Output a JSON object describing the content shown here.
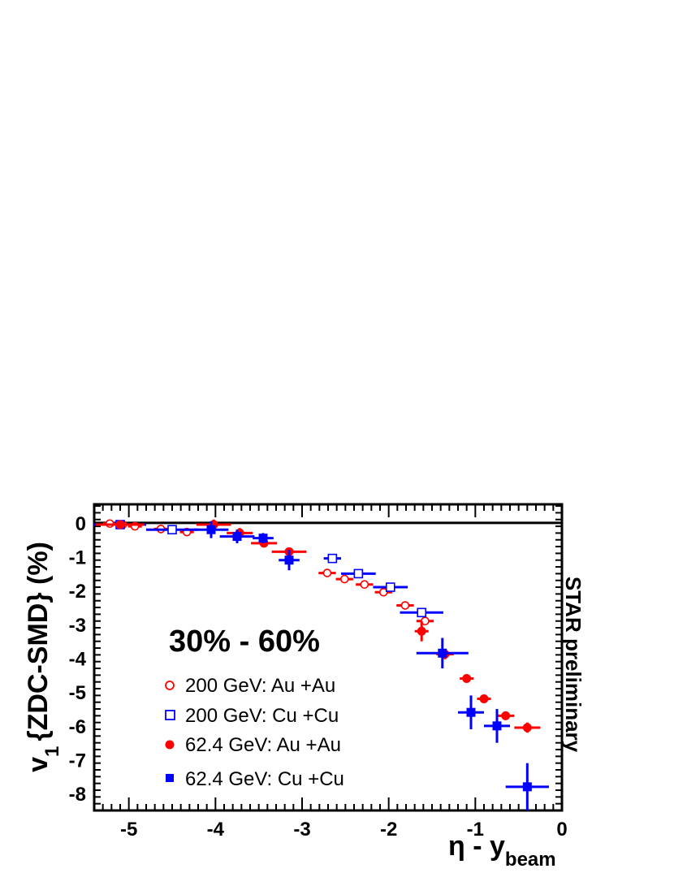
{
  "chart_data": {
    "type": "scatter",
    "title": "",
    "xlabel": "η - y_beam",
    "ylabel": "v1 {ZDC-SMD} (%)",
    "xlim": [
      -5.4,
      0
    ],
    "ylim": [
      -8.5,
      0.55
    ],
    "x_ticks": [
      "-5",
      "-4",
      "-3",
      "-2",
      "-1",
      "0"
    ],
    "y_ticks": [
      "0",
      "-1",
      "-2",
      "-3",
      "-4",
      "-5",
      "-6",
      "-7",
      "-8"
    ],
    "reference_line_y": 0,
    "annotation_centrality": "30% - 60%",
    "annotation_preliminary": "STAR preliminary",
    "series": [
      {
        "name": "200 GeV: Au +Au",
        "marker": "open-circle",
        "color": "#ff0000",
        "points": [
          {
            "x": -5.22,
            "y": -0.02,
            "xerr": 0.08,
            "yerr": 0.03
          },
          {
            "x": -5.07,
            "y": -0.05,
            "xerr": 0.08,
            "yerr": 0.03
          },
          {
            "x": -4.93,
            "y": -0.1,
            "xerr": 0.08,
            "yerr": 0.03
          },
          {
            "x": -4.63,
            "y": -0.18,
            "xerr": 0.08,
            "yerr": 0.03
          },
          {
            "x": -4.33,
            "y": -0.27,
            "xerr": 0.08,
            "yerr": 0.03
          },
          {
            "x": -2.71,
            "y": -1.48,
            "xerr": 0.1,
            "yerr": 0.04
          },
          {
            "x": -2.51,
            "y": -1.66,
            "xerr": 0.1,
            "yerr": 0.04
          },
          {
            "x": -2.28,
            "y": -1.82,
            "xerr": 0.1,
            "yerr": 0.04
          },
          {
            "x": -2.06,
            "y": -2.05,
            "xerr": 0.1,
            "yerr": 0.04
          },
          {
            "x": -1.81,
            "y": -2.44,
            "xerr": 0.1,
            "yerr": 0.04
          },
          {
            "x": -1.58,
            "y": -2.9,
            "xerr": 0.1,
            "yerr": 0.04
          }
        ]
      },
      {
        "name": "200 GeV: Cu +Cu",
        "marker": "open-square",
        "color": "#0000ff",
        "points": [
          {
            "x": -5.1,
            "y": -0.05,
            "xerr": 0.3,
            "yerr": 0.05
          },
          {
            "x": -4.5,
            "y": -0.2,
            "xerr": 0.3,
            "yerr": 0.05
          },
          {
            "x": -2.65,
            "y": -1.05,
            "xerr": 0.1,
            "yerr": 0.05
          },
          {
            "x": -2.35,
            "y": -1.5,
            "xerr": 0.2,
            "yerr": 0.05
          },
          {
            "x": -1.98,
            "y": -1.9,
            "xerr": 0.2,
            "yerr": 0.05
          },
          {
            "x": -1.62,
            "y": -2.65,
            "xerr": 0.25,
            "yerr": 0.05
          }
        ]
      },
      {
        "name": "62.4 GeV: Au +Au",
        "marker": "filled-circle",
        "color": "#ff0000",
        "points": [
          {
            "x": -5.1,
            "y": -0.05,
            "xerr": 0.28,
            "yerr": 0.05
          },
          {
            "x": -4.02,
            "y": -0.05,
            "xerr": 0.2,
            "yerr": 0.15
          },
          {
            "x": -3.72,
            "y": -0.3,
            "xerr": 0.15,
            "yerr": 0.15
          },
          {
            "x": -3.44,
            "y": -0.6,
            "xerr": 0.15,
            "yerr": 0.1
          },
          {
            "x": -3.15,
            "y": -0.85,
            "xerr": 0.2,
            "yerr": 0.08
          },
          {
            "x": -1.62,
            "y": -3.2,
            "xerr": 0.08,
            "yerr": 0.3
          },
          {
            "x": -1.35,
            "y": -3.88,
            "xerr": 0.1,
            "yerr": 0.15
          },
          {
            "x": -1.1,
            "y": -4.6,
            "xerr": 0.08,
            "yerr": 0.08
          },
          {
            "x": -0.9,
            "y": -5.2,
            "xerr": 0.08,
            "yerr": 0.1
          },
          {
            "x": -0.65,
            "y": -5.7,
            "xerr": 0.1,
            "yerr": 0.1
          },
          {
            "x": -0.4,
            "y": -6.05,
            "xerr": 0.15,
            "yerr": 0.15
          }
        ]
      },
      {
        "name": "62.4 GeV: Cu +Cu",
        "marker": "filled-square",
        "color": "#0000ff",
        "points": [
          {
            "x": -4.05,
            "y": -0.2,
            "xerr": 0.2,
            "yerr": 0.25
          },
          {
            "x": -3.75,
            "y": -0.4,
            "xerr": 0.2,
            "yerr": 0.2
          },
          {
            "x": -3.45,
            "y": -0.45,
            "xerr": 0.12,
            "yerr": 0.15
          },
          {
            "x": -3.15,
            "y": -1.1,
            "xerr": 0.12,
            "yerr": 0.3
          },
          {
            "x": -1.38,
            "y": -3.85,
            "xerr": 0.3,
            "yerr": 0.45
          },
          {
            "x": -1.05,
            "y": -5.6,
            "xerr": 0.15,
            "yerr": 0.5
          },
          {
            "x": -0.75,
            "y": -6.0,
            "xerr": 0.15,
            "yerr": 0.5
          },
          {
            "x": -0.4,
            "y": -7.8,
            "xerr": 0.25,
            "yerr": 0.7
          }
        ]
      }
    ]
  }
}
